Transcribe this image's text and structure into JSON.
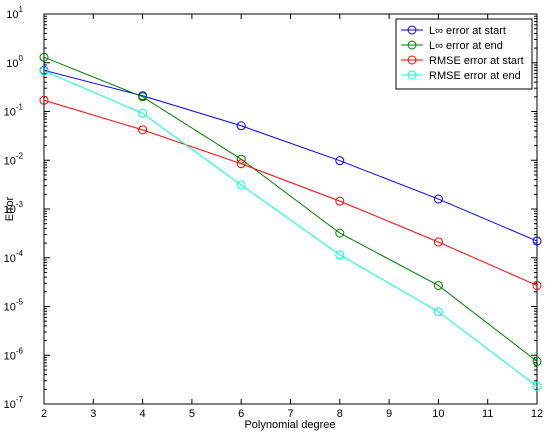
{
  "chart_data": {
    "type": "line",
    "title": "",
    "xlabel": "Polynomial degree",
    "ylabel": "Error",
    "xlim": [
      2,
      12
    ],
    "ylim": [
      1e-07,
      10
    ],
    "yscale": "log",
    "grid": false,
    "legend_position": "top-right",
    "x": [
      2,
      4,
      6,
      8,
      10,
      12
    ],
    "x_ticks": [
      "2",
      "3",
      "4",
      "5",
      "6",
      "7",
      "8",
      "9",
      "10",
      "11",
      "12"
    ],
    "y_tick_exponents": [
      "1",
      "0",
      "-1",
      "-2",
      "-3",
      "-4",
      "-5",
      "-6",
      "-7"
    ],
    "series": [
      {
        "name": "L∞ error at start",
        "color": "#0000ff",
        "values": [
          0.7,
          0.21,
          0.051,
          0.0098,
          0.0016,
          0.00022
        ]
      },
      {
        "name": "L∞ error at end",
        "color": "#008000",
        "values": [
          1.3,
          0.2,
          0.0105,
          0.00032,
          2.7e-05,
          7.5e-07
        ]
      },
      {
        "name": "RMSE error at start",
        "color": "#ff0000",
        "values": [
          0.17,
          0.042,
          0.0085,
          0.00145,
          0.00021,
          2.7e-05
        ]
      },
      {
        "name": "RMSE error at end",
        "color": "#00ffcc",
        "values": [
          0.68,
          0.092,
          0.0031,
          0.000115,
          7.8e-06,
          2.3e-07
        ]
      }
    ]
  }
}
